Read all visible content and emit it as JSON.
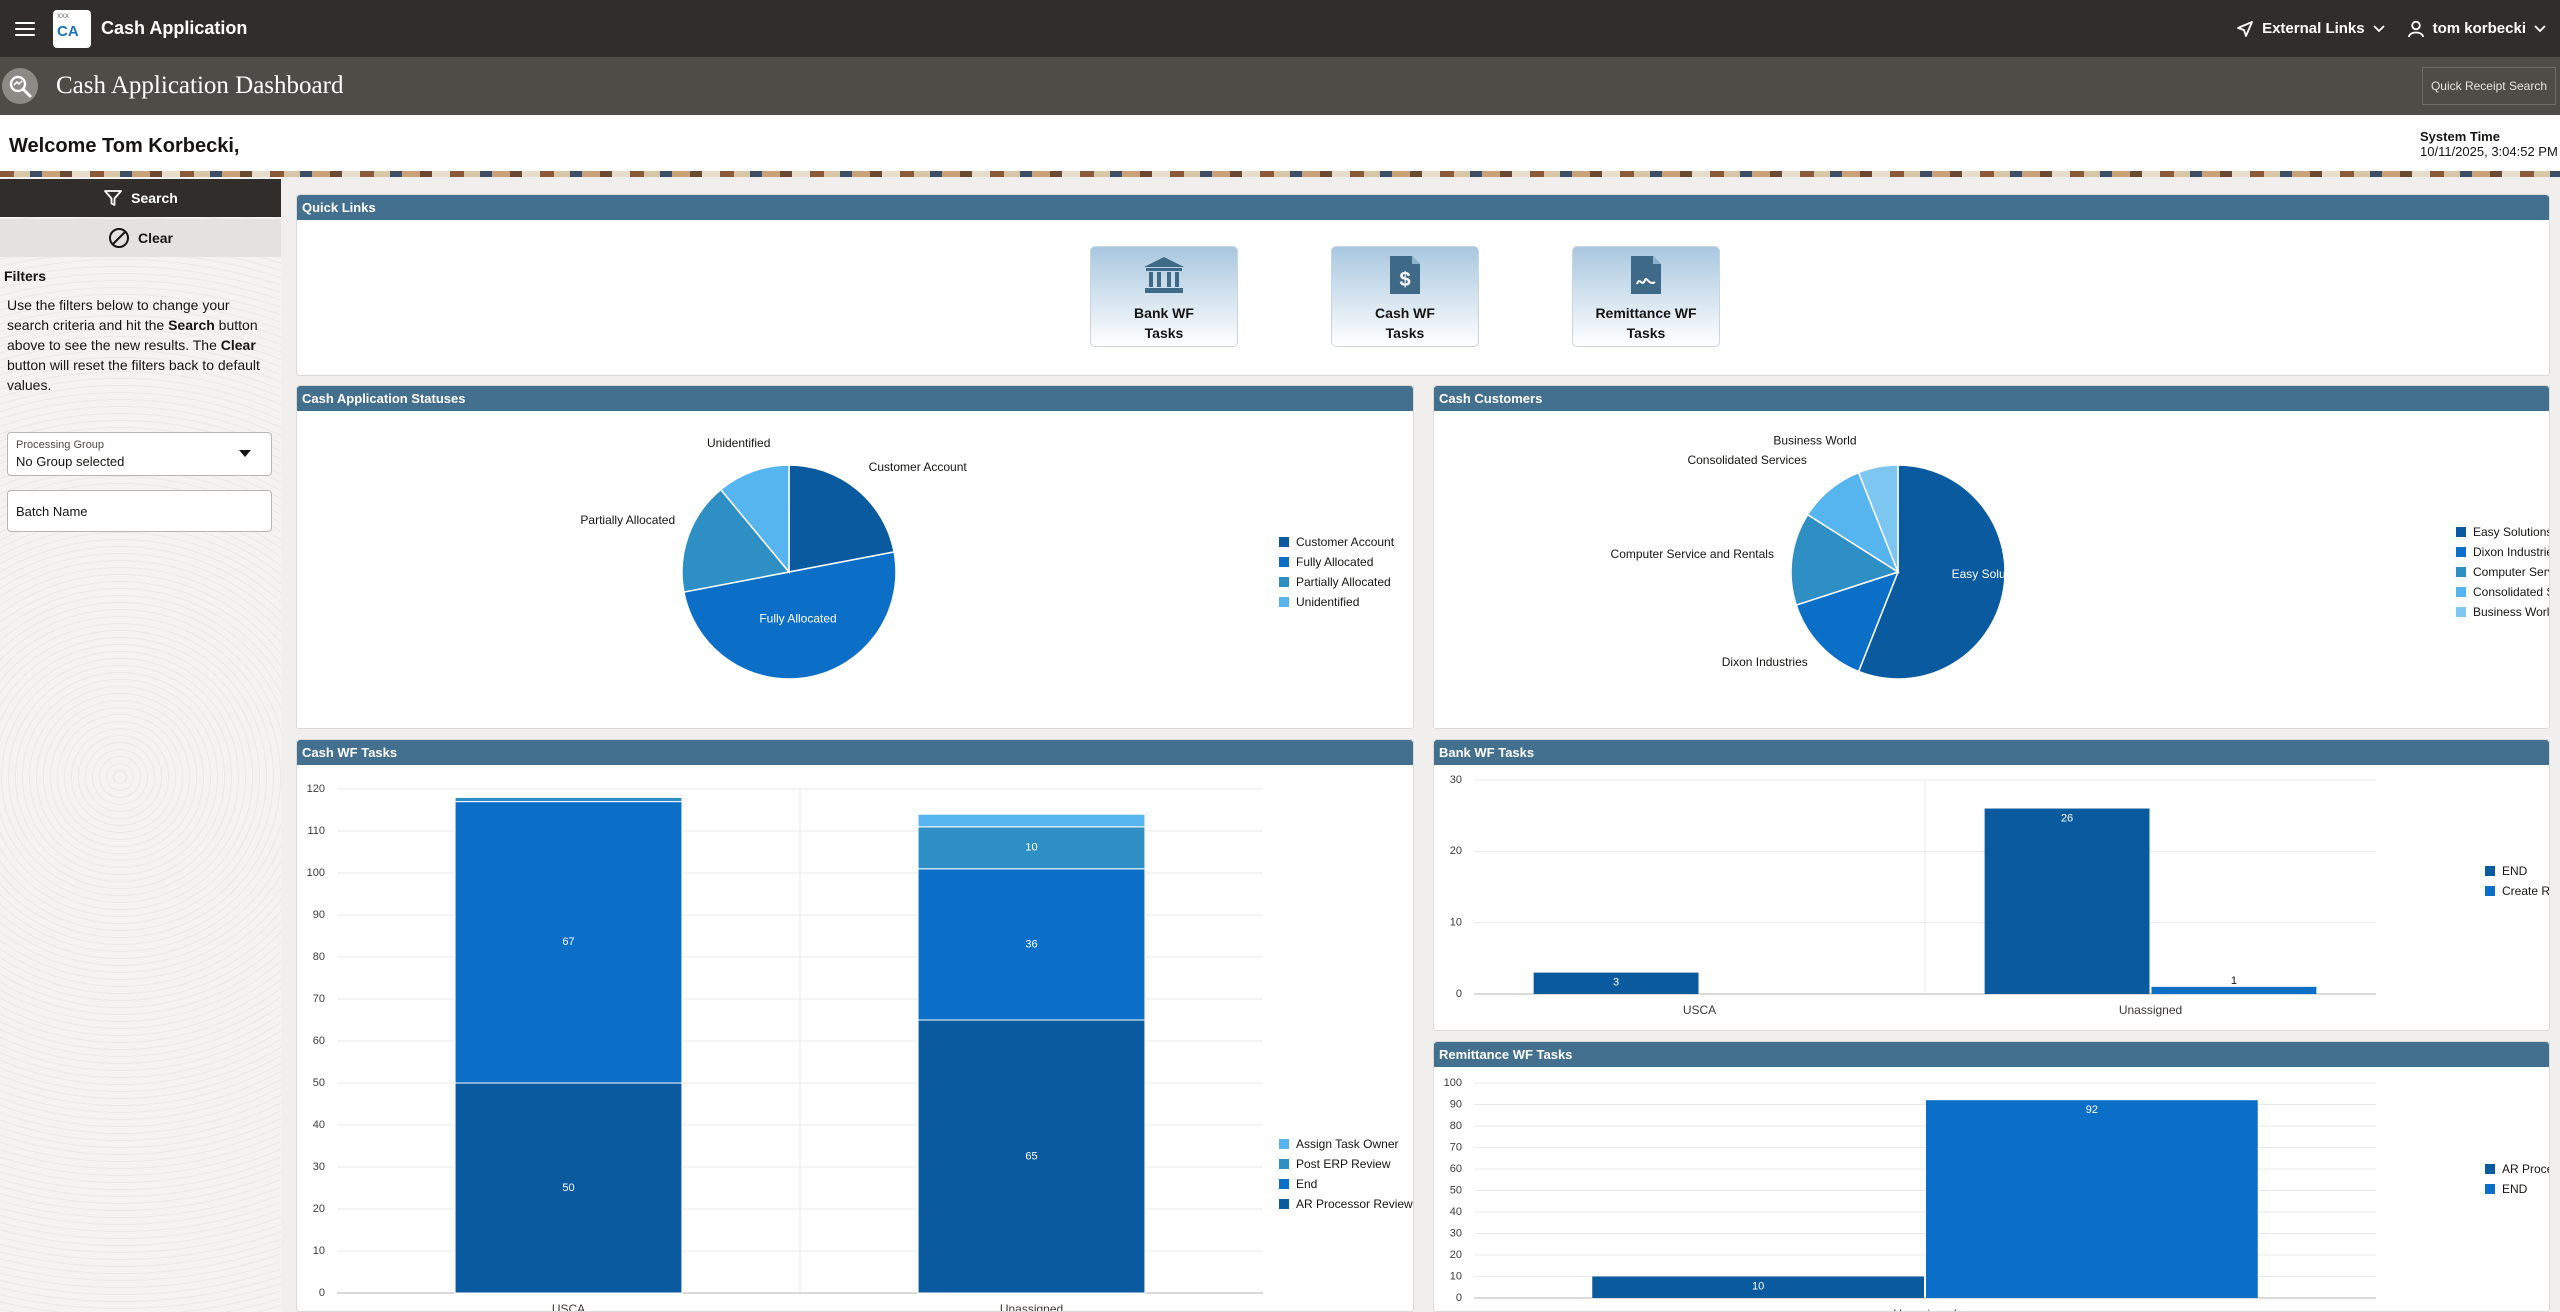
{
  "app": {
    "title": "Cash Application",
    "logo_abbr": "CA",
    "logo_small": "XXX"
  },
  "topbar": {
    "external_links": "External Links",
    "user": "tom korbecki"
  },
  "page": {
    "title": "Cash Application Dashboard",
    "quick_receipt_search": "Quick Receipt Search"
  },
  "welcome": {
    "text": "Welcome Tom Korbecki,",
    "system_time_label": "System Time",
    "system_time_value": "10/11/2025, 3:04:52 PM"
  },
  "sidebar": {
    "search_label": "Search",
    "clear_label": "Clear",
    "filters_title": "Filters",
    "help_lines": [
      {
        "text": "Use the filters below to change your",
        "bold": ""
      },
      {
        "text": "search criteria and hit the ",
        "bold": "Search",
        "after": " button"
      },
      {
        "text": "above to see the new results. The ",
        "bold": "Clear",
        "after": ""
      },
      {
        "text": "button will reset the filters back to default",
        "bold": ""
      },
      {
        "text": "values.",
        "bold": ""
      }
    ],
    "processing_group_label": "Processing Group",
    "processing_group_value": "No Group selected",
    "batch_name_placeholder": "Batch Name"
  },
  "quick_links": {
    "title": "Quick Links",
    "tiles": [
      {
        "label": "Bank WF\nTasks",
        "icon": "bank-icon"
      },
      {
        "label": "Cash WF\nTasks",
        "icon": "dollar-document-icon"
      },
      {
        "label": "Remittance WF\nTasks",
        "icon": "signed-document-icon"
      }
    ]
  },
  "colors": {
    "c1": "#0a5aa0",
    "c2": "#0b6fc8",
    "c3": "#2e8fc5",
    "c4": "#56b5ee",
    "c5": "#7dc6f2"
  },
  "chart_data": [
    {
      "id": "cash-app-statuses",
      "title": "Cash Application Statuses",
      "type": "pie",
      "slices": [
        {
          "label": "Customer Account",
          "value": 22,
          "color": "#0a5aa0"
        },
        {
          "label": "Fully Allocated",
          "value": 50,
          "color": "#0b6fc8"
        },
        {
          "label": "Partially Allocated",
          "value": 17,
          "color": "#2e8fc5"
        },
        {
          "label": "Unidentified",
          "value": 11,
          "color": "#56b5ee"
        }
      ],
      "legend": "right"
    },
    {
      "id": "cash-customers",
      "title": "Cash Customers",
      "type": "pie",
      "slices": [
        {
          "label": "Easy Solutions",
          "value": 56,
          "color": "#0a5aa0"
        },
        {
          "label": "Dixon Industries",
          "value": 14,
          "color": "#0b6fc8"
        },
        {
          "label": "Computer Service and Rentals",
          "value": 14,
          "color": "#2e8fc5"
        },
        {
          "label": "Consolidated Services",
          "value": 10,
          "color": "#56b5ee"
        },
        {
          "label": "Business World",
          "value": 6,
          "color": "#7dc6f2"
        }
      ],
      "legend": "right"
    },
    {
      "id": "cash-wf-tasks",
      "title": "Cash WF Tasks",
      "type": "bar",
      "stacked": true,
      "categories": [
        "USCA",
        "Unassigned"
      ],
      "series": [
        {
          "name": "AR Processor Review",
          "values": [
            50,
            65
          ],
          "color": "#0a5aa0"
        },
        {
          "name": "End",
          "values": [
            67,
            36
          ],
          "color": "#0b6fc8"
        },
        {
          "name": "Post ERP Review",
          "values": [
            1,
            10
          ],
          "color": "#2e8fc5"
        },
        {
          "name": "Assign Task Owner",
          "values": [
            0,
            3
          ],
          "color": "#56b5ee"
        }
      ],
      "ylim": [
        0,
        120
      ],
      "yticks": [
        0,
        10,
        20,
        30,
        40,
        50,
        60,
        70,
        80,
        90,
        100,
        110,
        120
      ],
      "legend_order": [
        "Assign Task Owner",
        "Post ERP Review",
        "End",
        "AR Processor Review"
      ],
      "legend": "right"
    },
    {
      "id": "bank-wf-tasks",
      "title": "Bank WF Tasks",
      "type": "bar",
      "stacked": false,
      "categories": [
        "USCA",
        "Unassigned"
      ],
      "series": [
        {
          "name": "END",
          "values": [
            3,
            26
          ],
          "color": "#0a5aa0"
        },
        {
          "name": "Create Receipt Tasks",
          "values": [
            0,
            1
          ],
          "color": "#0b6fc8"
        }
      ],
      "ylim": [
        0,
        30
      ],
      "yticks": [
        0,
        10,
        20,
        30
      ],
      "legend": "right"
    },
    {
      "id": "remittance-wf-tasks",
      "title": "Remittance WF Tasks",
      "type": "bar",
      "stacked": false,
      "categories": [
        "Unassigned"
      ],
      "series": [
        {
          "name": "AR Processor Review",
          "values": [
            10
          ],
          "color": "#0a5aa0"
        },
        {
          "name": "END",
          "values": [
            92
          ],
          "color": "#0b6fc8"
        }
      ],
      "ylim": [
        0,
        100
      ],
      "yticks": [
        0,
        10,
        20,
        30,
        40,
        50,
        60,
        70,
        80,
        90,
        100
      ],
      "legend": "right"
    }
  ]
}
